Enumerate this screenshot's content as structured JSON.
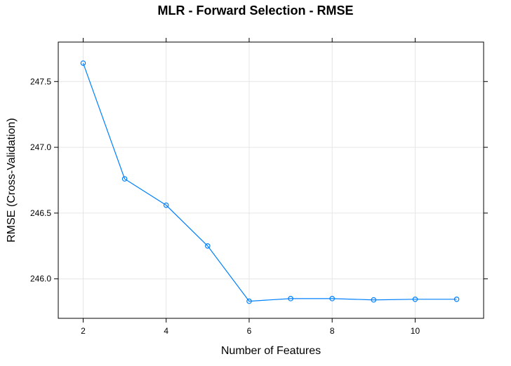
{
  "chart_data": {
    "type": "line",
    "title": "MLR - Forward Selection - RMSE",
    "xlabel": "Number of Features",
    "ylabel": "RMSE (Cross-Validation)",
    "x": [
      2,
      3,
      4,
      5,
      6,
      7,
      8,
      9,
      10,
      11
    ],
    "series": [
      {
        "values": [
          247.64,
          246.76,
          246.56,
          246.25,
          245.83,
          245.85,
          245.85,
          245.84,
          245.845,
          245.845
        ],
        "color": "#0080ff",
        "marker": "open-circle"
      }
    ],
    "xticks": [
      2,
      4,
      6,
      8,
      10
    ],
    "xtick_labels": [
      "2",
      "4",
      "6",
      "8",
      "10"
    ],
    "yticks": [
      246.0,
      246.5,
      247.0,
      247.5
    ],
    "ytick_labels": [
      "246.0",
      "246.5",
      "247.0",
      "247.5"
    ],
    "xlim": [
      1.4,
      11.65
    ],
    "ylim": [
      245.7,
      247.8
    ],
    "grid": true,
    "grid_color": "#e6e6e6",
    "legend": "none"
  }
}
